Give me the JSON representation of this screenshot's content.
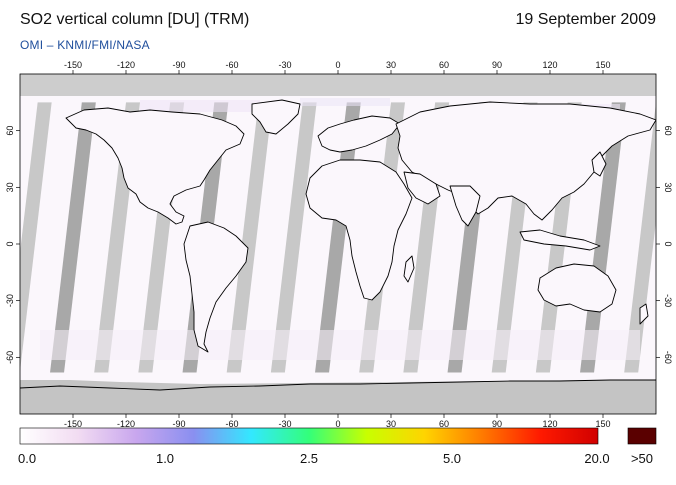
{
  "header": {
    "title": "SO2 vertical column [DU] (TRM)",
    "date": "19 September 2009",
    "credit": "OMI  –  KNMI/FMI/NASA"
  },
  "map": {
    "lon_ticks": [
      "-150",
      "-120",
      "-90",
      "-60",
      "-30",
      "0",
      "30",
      "60",
      "90",
      "120",
      "150"
    ],
    "lat_ticks": [
      "60",
      "30",
      "0",
      "-30",
      "-60"
    ],
    "colors": {
      "land_outline": "#000000",
      "no_data": "#cdcdcd",
      "orbit_gap": "#c8c8c8",
      "overlap_band": "#a8a8a8",
      "background": "#fbf7fc"
    }
  },
  "colorbar": {
    "labels": [
      "0.0",
      "1.0",
      "2.5",
      "5.0",
      "20.0"
    ],
    "over_label": ">50",
    "over_color": "#5a0000",
    "stops": [
      "#ffffff",
      "#f2dcf2",
      "#c9a7ee",
      "#8a8ff0",
      "#33e8ff",
      "#33ff7a",
      "#c8ff00",
      "#ffd400",
      "#ff7a00",
      "#ff1a00",
      "#d10000"
    ]
  }
}
